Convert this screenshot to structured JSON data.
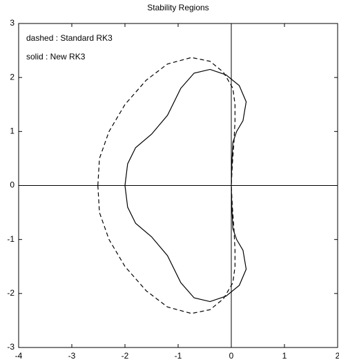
{
  "chart_data": {
    "type": "line",
    "title": "Stability Regions",
    "annotations": [
      "dashed : Standard RK3",
      "solid : New RK3"
    ],
    "xlim": [
      -4,
      2
    ],
    "ylim": [
      -3,
      3
    ],
    "xticks": [
      -4,
      -3,
      -2,
      -1,
      0,
      1,
      2
    ],
    "yticks": [
      -3,
      -2,
      -1,
      0,
      1,
      2,
      3
    ],
    "zero_lines": true,
    "series": [
      {
        "style": "dashed",
        "color": "#000000",
        "x": [
          -2.51,
          -2.48,
          -2.3,
          -2.0,
          -1.6,
          -1.2,
          -0.75,
          -0.4,
          -0.15,
          0.03,
          0.07,
          0.07,
          0.05,
          0.02,
          0,
          0.02,
          0.05,
          0.07,
          0.07,
          0.03,
          -0.15,
          -0.4,
          -0.75,
          -1.2,
          -1.6,
          -2.0,
          -2.3,
          -2.48,
          -2.51
        ],
        "values": [
          0,
          0.5,
          1.0,
          1.5,
          1.95,
          2.25,
          2.37,
          2.3,
          2.1,
          1.8,
          1.5,
          1.2,
          0.8,
          0.4,
          0,
          -0.4,
          -0.8,
          -1.2,
          -1.5,
          -1.8,
          -2.1,
          -2.3,
          -2.37,
          -2.25,
          -1.95,
          -1.5,
          -1.0,
          -0.5,
          0
        ]
      },
      {
        "style": "solid",
        "color": "#000000",
        "x": [
          -2.0,
          -1.95,
          -1.8,
          -1.5,
          -1.2,
          -0.95,
          -0.7,
          -0.4,
          -0.1,
          0.15,
          0.28,
          0.22,
          0.1,
          0.03,
          0.01,
          0,
          0.01,
          0.03,
          0.1,
          0.22,
          0.28,
          0.15,
          -0.1,
          -0.4,
          -0.7,
          -0.95,
          -1.2,
          -1.5,
          -1.8,
          -1.95,
          -2.0
        ],
        "values": [
          0,
          0.4,
          0.7,
          0.95,
          1.3,
          1.8,
          2.08,
          2.15,
          2.05,
          1.85,
          1.55,
          1.2,
          1.0,
          0.8,
          0.4,
          0,
          -0.4,
          -0.8,
          -1.0,
          -1.2,
          -1.55,
          -1.85,
          -2.05,
          -2.15,
          -2.08,
          -1.8,
          -1.3,
          -0.95,
          -0.7,
          -0.4,
          0
        ]
      }
    ]
  }
}
